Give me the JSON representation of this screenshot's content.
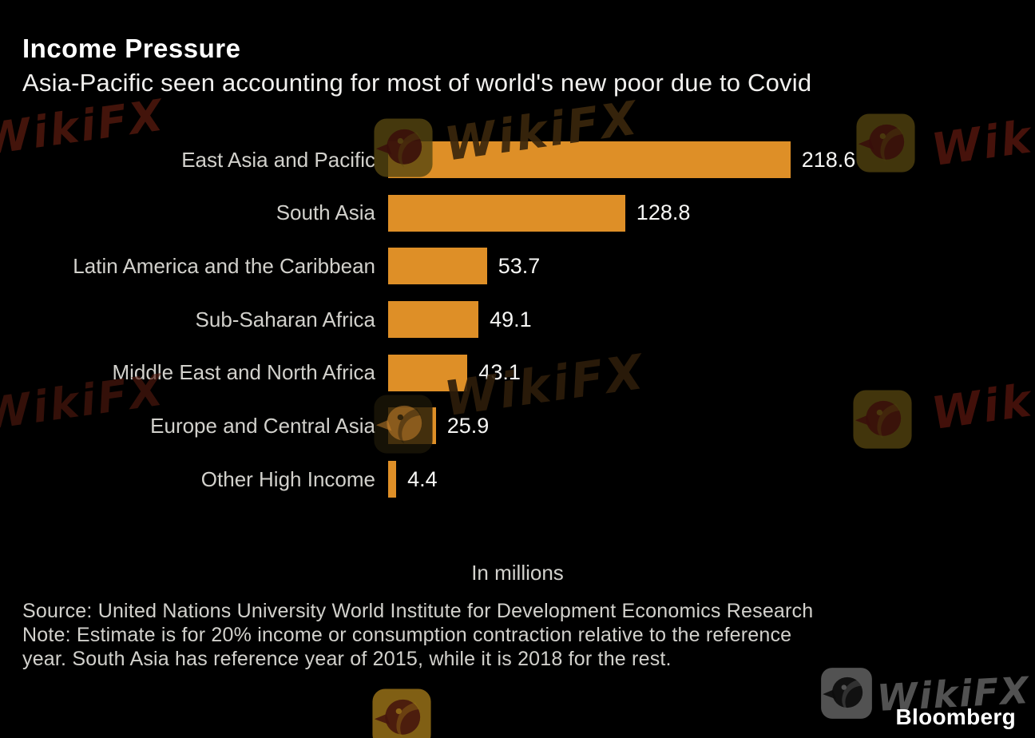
{
  "header": {
    "title": "Income Pressure",
    "subtitle": "Asia-Pacific seen accounting for most of world's new poor due to Covid"
  },
  "chart_data": {
    "type": "bar",
    "orientation": "horizontal",
    "title": "Income Pressure",
    "subtitle": "Asia-Pacific seen accounting for most of world's new poor due to Covid",
    "categories": [
      "East Asia and Pacific",
      "South Asia",
      "Latin America and the Caribbean",
      "Sub-Saharan Africa",
      "Middle East and North Africa",
      "Europe and Central Asia",
      "Other High Income"
    ],
    "values": [
      218.6,
      128.8,
      53.7,
      49.1,
      43.1,
      25.9,
      4.4
    ],
    "value_labels": [
      "218.6",
      "128.8",
      "53.7",
      "49.1",
      "43.1",
      "25.9",
      "4.4"
    ],
    "unit_caption": "In millions",
    "xlim": [
      0,
      230
    ],
    "bar_color": "#DE8F27",
    "grid": false,
    "legend": false,
    "value_label_position": "right-of-bar",
    "category_label_position": "left-of-bar"
  },
  "footer": {
    "source": "Source: United Nations University World Institute for Development Economics Research",
    "note": "Note: Estimate is for 20% income or consumption contraction relative to the reference year. South Asia has reference year of 2015, while it is 2018 for the rest.",
    "brand": "Bloomberg"
  },
  "watermark": {
    "text": "WikiFX"
  },
  "colors": {
    "background": "#000000",
    "bar": "#DE8F27",
    "title_text": "#FFFFFF",
    "subtitle_text": "#F1F0EE",
    "category_text": "#D2D1CC",
    "value_text": "#F6F6F4",
    "footer_text": "#D2D1CC",
    "brand_text": "#FFFFFF"
  }
}
